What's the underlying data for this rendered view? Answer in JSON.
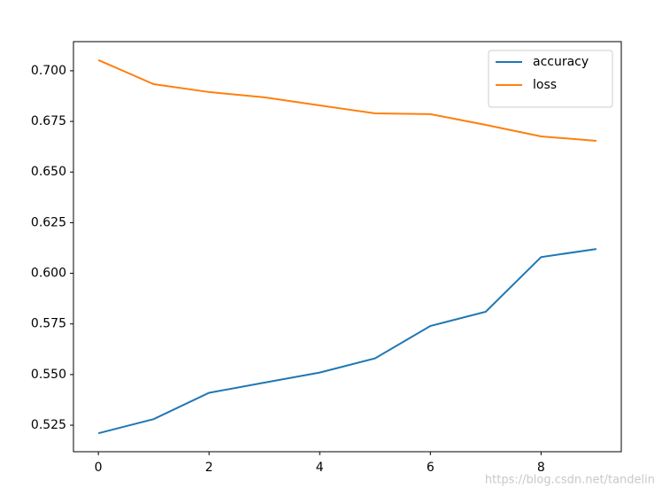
{
  "chart_data": {
    "type": "line",
    "x": [
      0,
      1,
      2,
      3,
      4,
      5,
      6,
      7,
      8,
      9
    ],
    "series": [
      {
        "name": "accuracy",
        "color": "#1f77b4",
        "values": [
          0.521,
          0.528,
          0.541,
          0.546,
          0.551,
          0.558,
          0.574,
          0.581,
          0.608,
          0.612
        ]
      },
      {
        "name": "loss",
        "color": "#ff7f0e",
        "values": [
          0.7053,
          0.6934,
          0.6895,
          0.6869,
          0.6829,
          0.679,
          0.6786,
          0.6733,
          0.6676,
          0.6654
        ]
      }
    ],
    "xlim": [
      -0.45,
      9.45
    ],
    "xticks": [
      0,
      2,
      4,
      6,
      8
    ],
    "ylim": [
      0.5119,
      0.7144
    ],
    "yticks": [
      {
        "value": 0.525,
        "label": "0.525"
      },
      {
        "value": 0.55,
        "label": "0.550"
      },
      {
        "value": 0.575,
        "label": "0.575"
      },
      {
        "value": 0.6,
        "label": "0.600"
      },
      {
        "value": 0.625,
        "label": "0.625"
      },
      {
        "value": 0.65,
        "label": "0.650"
      },
      {
        "value": 0.675,
        "label": "0.675"
      },
      {
        "value": 0.7,
        "label": "0.700"
      }
    ],
    "legend": "upper right",
    "watermark": "https://blog.csdn.net/tandelin"
  }
}
